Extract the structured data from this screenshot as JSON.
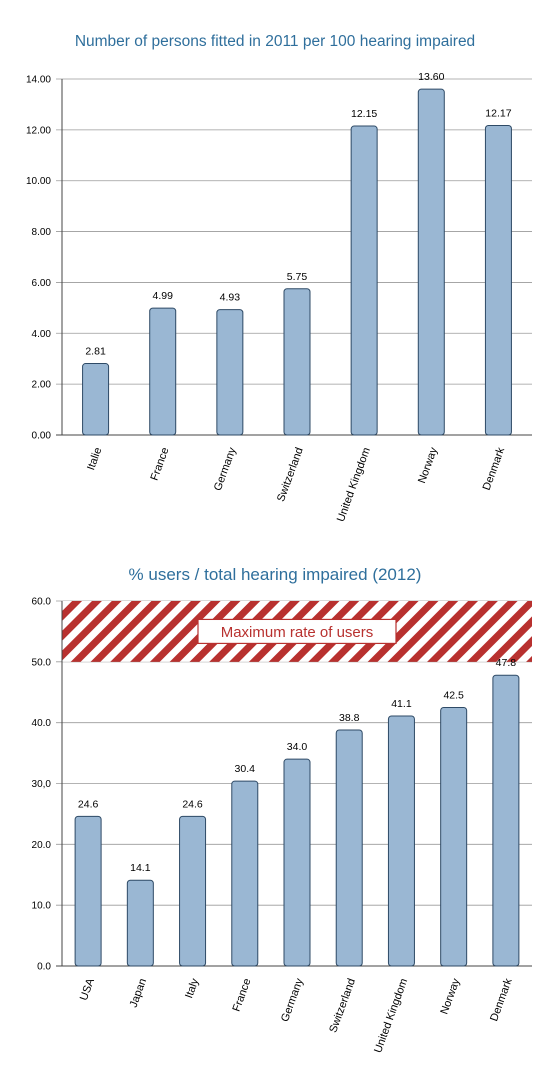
{
  "chart_data": [
    {
      "type": "bar",
      "title": "Number of persons fitted in 2011 per 100 hearing impaired",
      "categories": [
        "Italie",
        "France",
        "Germany",
        "Switzerland",
        "United Kingdom",
        "Norway",
        "Denmark"
      ],
      "values": [
        2.81,
        4.99,
        4.93,
        5.75,
        12.15,
        13.6,
        12.17
      ],
      "value_labels": [
        "2.81",
        "4.99",
        "4.93",
        "5.75",
        "12.15",
        "13.60",
        "12.17"
      ],
      "ylim": [
        0,
        14
      ],
      "yticks": [
        0,
        2,
        4,
        6,
        8,
        10,
        12,
        14
      ],
      "ytick_labels": [
        "0.00",
        "2.00",
        "4.00",
        "6.00",
        "8.00",
        "10.00",
        "12.00",
        "14.00"
      ],
      "grid": true,
      "bar_color": "#9ab7d3",
      "bar_edge_color": "#2e4a66"
    },
    {
      "type": "bar",
      "title": "% users / total hearing impaired (2012)",
      "categories": [
        "USA",
        "Japan",
        "Italy",
        "France",
        "Germany",
        "Switzerland",
        "United Kingdom",
        "Norway",
        "Denmark"
      ],
      "values": [
        24.6,
        14.1,
        24.6,
        30.4,
        34.0,
        38.8,
        41.1,
        42.5,
        47.8
      ],
      "value_labels": [
        "24.6",
        "14.1",
        "24.6",
        "30.4",
        "34.0",
        "38.8",
        "41.1",
        "42.5",
        "47.8"
      ],
      "ylim": [
        0,
        60
      ],
      "yticks": [
        0,
        10,
        20,
        30,
        40,
        50,
        60
      ],
      "ytick_labels": [
        "0.0",
        "10.0",
        "20.0",
        "30,0",
        "40.0",
        "50.0",
        "60.0"
      ],
      "grid": true,
      "bar_color": "#9ab7d3",
      "bar_edge_color": "#2e4a66",
      "band": {
        "from": 50,
        "to": 60,
        "label": "Maximum rate of users",
        "stripe_color": "#b8312f",
        "label_color": "#b8312f"
      }
    }
  ]
}
